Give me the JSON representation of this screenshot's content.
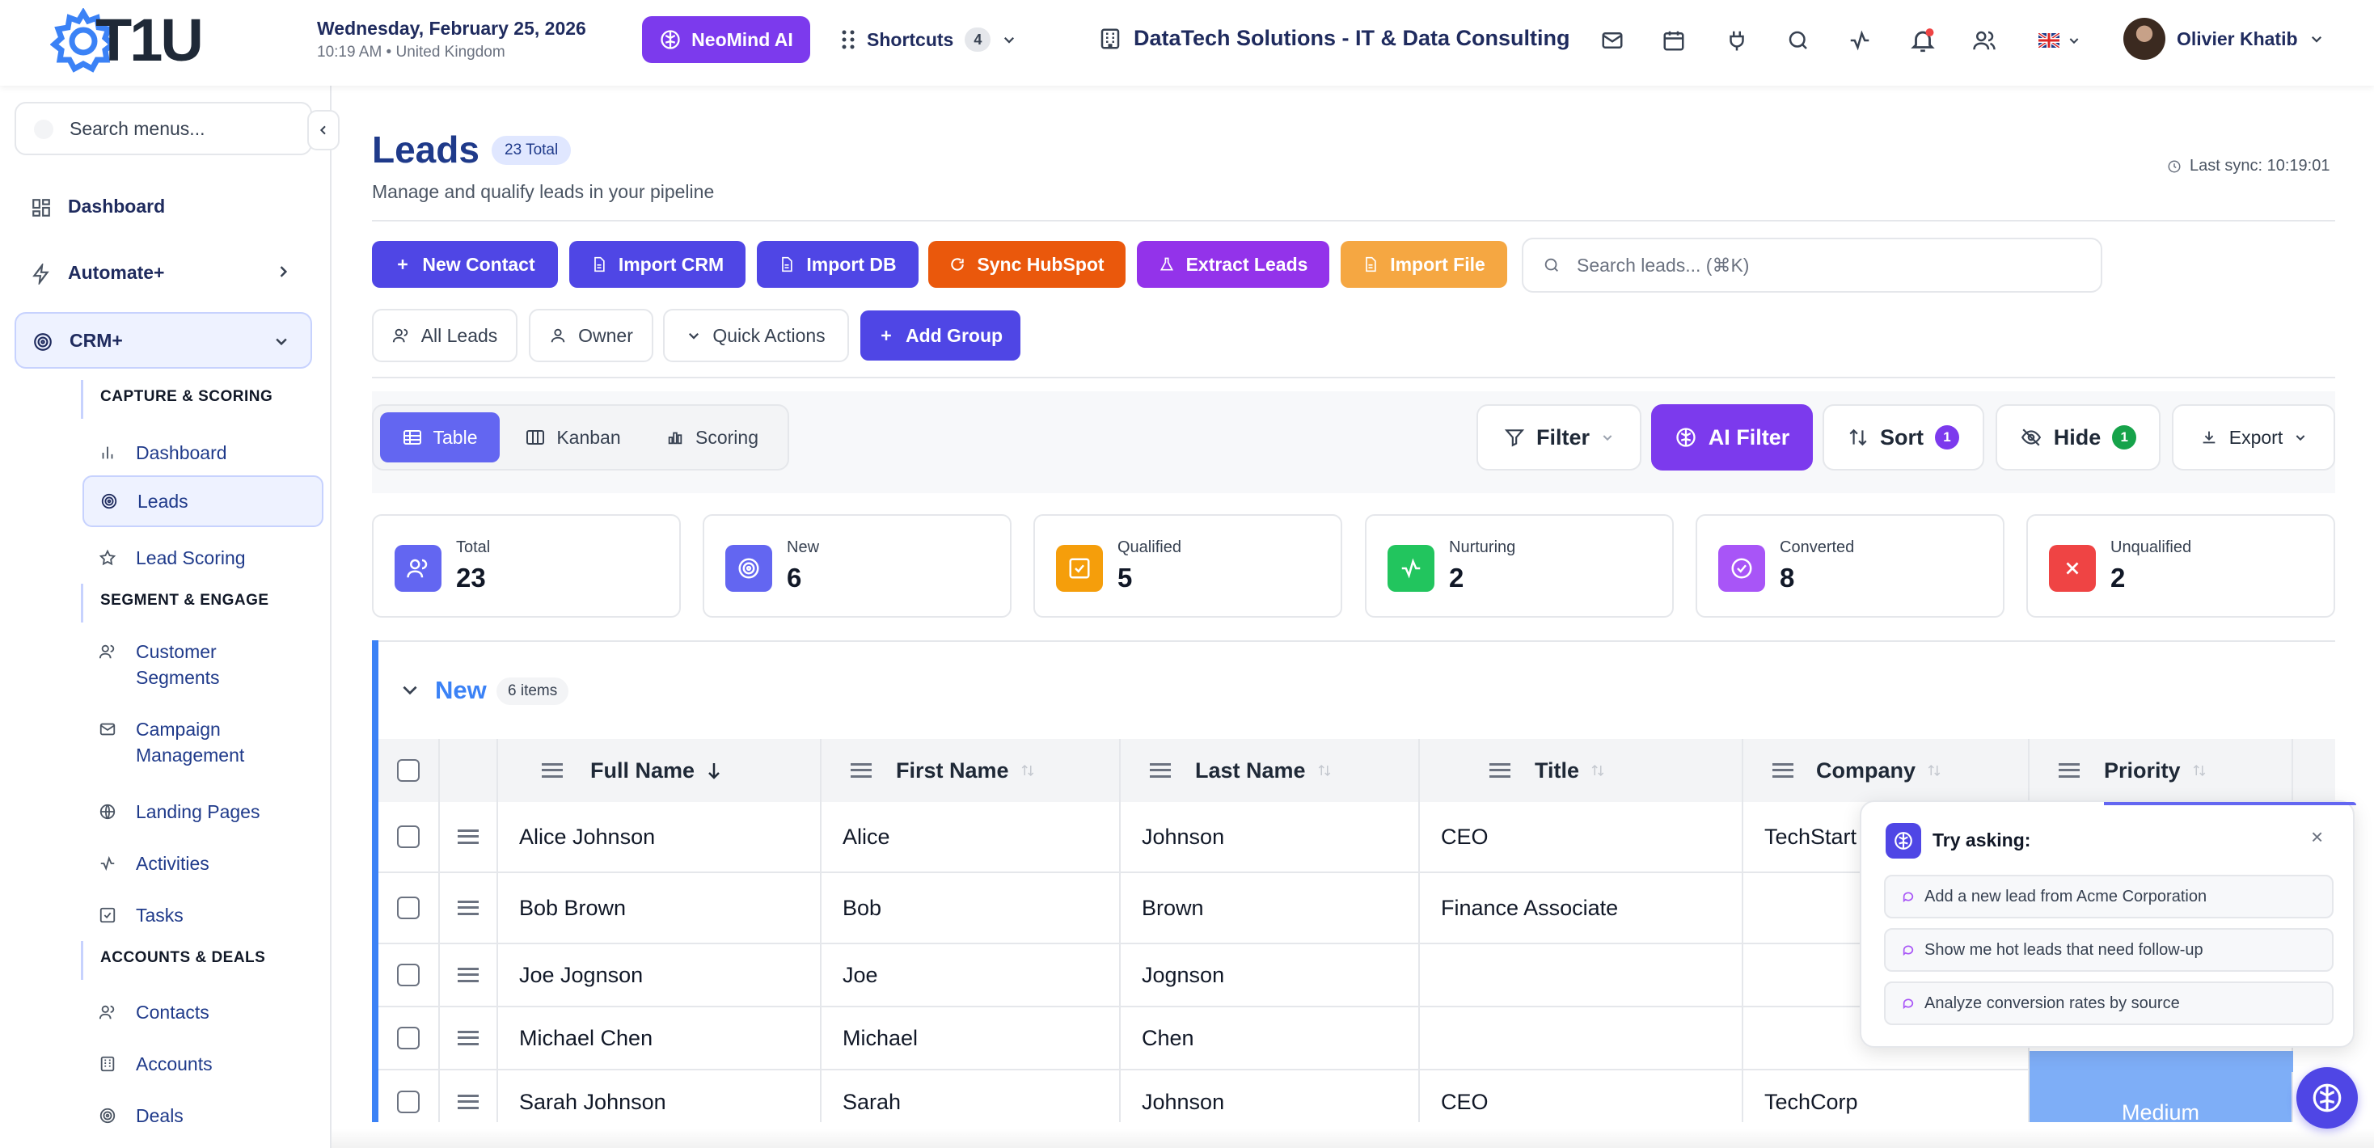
{
  "header": {
    "logo_text": "T1U",
    "date": "Wednesday, February 25, 2026",
    "time_location": "10:19 AM • United Kingdom",
    "ai_button": "NeoMind AI",
    "shortcuts_label": "Shortcuts",
    "shortcuts_count": "4",
    "company": "DataTech Solutions - IT & Data Consulting",
    "user_name": "Olivier Khatib",
    "icons": [
      "mail-icon",
      "calendar-icon",
      "plug-icon",
      "search-icon",
      "activity-icon",
      "bell-icon",
      "users-icon",
      "uk-flag-icon"
    ]
  },
  "sidebar": {
    "search_placeholder": "Search menus...",
    "dashboard": "Dashboard",
    "automate": "Automate+",
    "crm": "CRM+",
    "sections": {
      "capture": "CAPTURE & SCORING",
      "segment": "SEGMENT & ENGAGE",
      "accounts": "ACCOUNTS & DEALS"
    },
    "items": {
      "dashboard": "Dashboard",
      "leads": "Leads",
      "lead_scoring": "Lead Scoring",
      "segments": "Customer Segments",
      "campaigns": "Campaign Management",
      "landing": "Landing Pages",
      "activities": "Activities",
      "tasks": "Tasks",
      "contacts": "Contacts",
      "accounts": "Accounts",
      "deals": "Deals"
    }
  },
  "page": {
    "title": "Leads",
    "total_badge": "23 Total",
    "subtitle": "Manage and qualify leads in your pipeline",
    "last_sync": "Last sync: 10:19:01"
  },
  "actions": {
    "new_contact": "New Contact",
    "import_crm": "Import CRM",
    "import_db": "Import DB",
    "sync_hubspot": "Sync HubSpot",
    "extract_leads": "Extract Leads",
    "import_file": "Import File",
    "search_placeholder": "Search leads... (⌘K)",
    "all_leads": "All Leads",
    "owner": "Owner",
    "quick_actions": "Quick Actions",
    "add_group": "Add Group"
  },
  "views": {
    "table": "Table",
    "kanban": "Kanban",
    "scoring": "Scoring",
    "filter": "Filter",
    "ai_filter": "AI Filter",
    "sort": "Sort",
    "sort_count": "1",
    "hide": "Hide",
    "hide_count": "1",
    "export": "Export"
  },
  "stats": [
    {
      "label": "Total",
      "value": "23",
      "color": "#6366f1"
    },
    {
      "label": "New",
      "value": "6",
      "color": "#6366f1"
    },
    {
      "label": "Qualified",
      "value": "5",
      "color": "#f59e0b"
    },
    {
      "label": "Nurturing",
      "value": "2",
      "color": "#22c55e"
    },
    {
      "label": "Converted",
      "value": "8",
      "color": "#a855f7"
    },
    {
      "label": "Unqualified",
      "value": "2",
      "color": "#ef4444"
    }
  ],
  "group": {
    "name": "New",
    "count": "6 items"
  },
  "table": {
    "columns": [
      "Full Name",
      "First Name",
      "Last Name",
      "Title",
      "Company",
      "Priority"
    ],
    "rows": [
      {
        "full": "Alice Johnson",
        "first": "Alice",
        "last": "Johnson",
        "title": "CEO",
        "company": "TechStart",
        "priority": ""
      },
      {
        "full": "Bob Brown",
        "first": "Bob",
        "last": "Brown",
        "title": "Finance Associate",
        "company": "",
        "priority": ""
      },
      {
        "full": "Joe Jognson",
        "first": "Joe",
        "last": "Jognson",
        "title": "",
        "company": "",
        "priority": ""
      },
      {
        "full": "Michael Chen",
        "first": "Michael",
        "last": "Chen",
        "title": "",
        "company": "",
        "priority": ""
      },
      {
        "full": "Sarah Johnson",
        "first": "Sarah",
        "last": "Johnson",
        "title": "CEO",
        "company": "TechCorp",
        "priority": "Medium"
      }
    ]
  },
  "assistant": {
    "title": "Try asking:",
    "suggestions": [
      "Add a new lead from Acme Corporation",
      "Show me hot leads that need follow-up",
      "Analyze conversion rates by source"
    ]
  },
  "colors": {
    "primary": "#4f46e5",
    "purple": "#7c3aed",
    "orange": "#ea580c",
    "amber": "#f59e0b",
    "blue_accent": "#3b82f6",
    "priority_medium": "#60a5fa"
  }
}
